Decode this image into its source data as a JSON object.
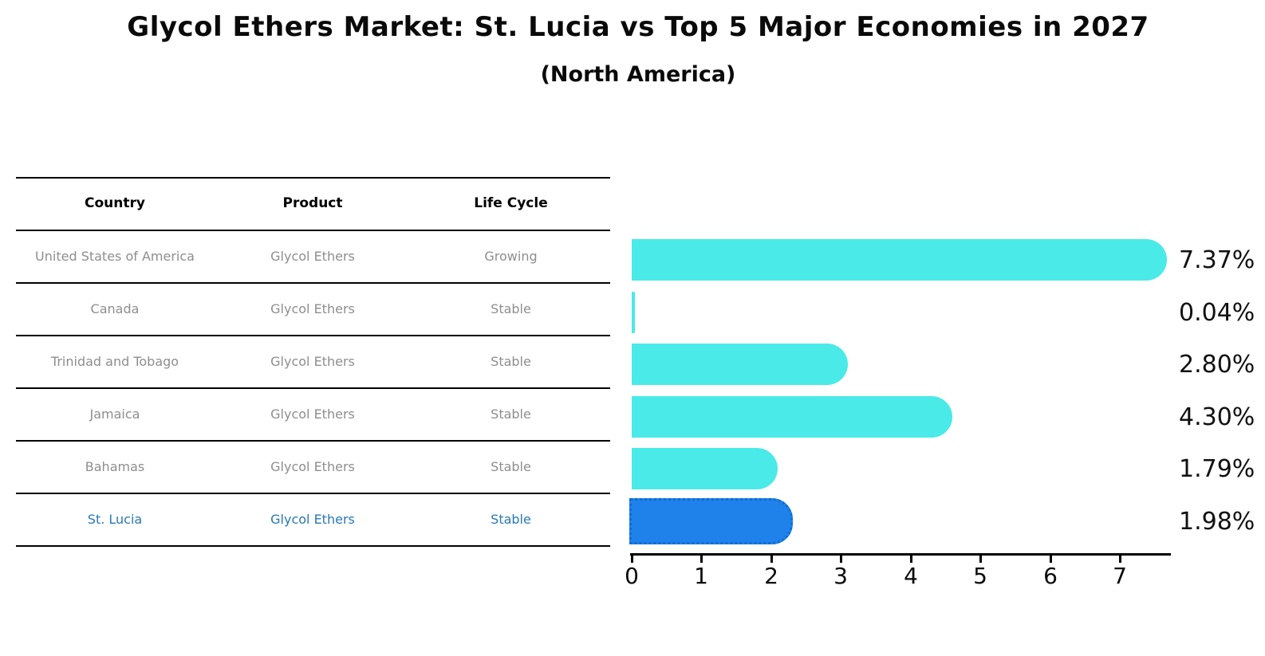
{
  "header": {
    "title": "Glycol Ethers Market: St. Lucia vs Top 5 Major Economies in 2027",
    "subtitle": "(North America)"
  },
  "table": {
    "columns": [
      "Country",
      "Product",
      "Life Cycle"
    ],
    "rows": [
      {
        "country": "United States of America",
        "product": "Glycol Ethers",
        "life_cycle": "Growing",
        "highlight": false
      },
      {
        "country": "Canada",
        "product": "Glycol Ethers",
        "life_cycle": "Stable",
        "highlight": false
      },
      {
        "country": "Trinidad and Tobago",
        "product": "Glycol Ethers",
        "life_cycle": "Stable",
        "highlight": false
      },
      {
        "country": "Jamaica",
        "product": "Glycol Ethers",
        "life_cycle": "Stable",
        "highlight": false
      },
      {
        "country": "Bahamas",
        "product": "Glycol Ethers",
        "life_cycle": "Stable",
        "highlight": false
      },
      {
        "country": "St. Lucia",
        "product": "Glycol Ethers",
        "life_cycle": "Stable",
        "highlight": true
      }
    ]
  },
  "chart_data": {
    "type": "bar",
    "orientation": "horizontal",
    "title": "Glycol Ethers Market: St. Lucia vs Top 5 Major Economies in 2027",
    "subtitle": "(North America)",
    "categories": [
      "United States of America",
      "Canada",
      "Trinidad and Tobago",
      "Jamaica",
      "Bahamas",
      "St. Lucia"
    ],
    "values": [
      7.37,
      0.04,
      2.8,
      4.3,
      1.79,
      1.98
    ],
    "value_labels": [
      "7.37%",
      "0.04%",
      "2.80%",
      "4.30%",
      "1.79%",
      "1.98%"
    ],
    "unit": "%",
    "xlabel": "",
    "ylabel": "",
    "xlim": [
      0,
      7.75
    ],
    "xticks": [
      0,
      1,
      2,
      3,
      4,
      5,
      6,
      7
    ],
    "highlight_index": 5,
    "legend": false,
    "grid": false
  },
  "colors": {
    "bar": "#49EAE8",
    "highlight_bar": "#1E82EA",
    "highlight_border": "#0F6CD6",
    "highlight_text": "#2878B8",
    "row_text": "#8E8E8E",
    "header_text": "#000000",
    "axis": "#000000",
    "value_label": "#111111"
  }
}
